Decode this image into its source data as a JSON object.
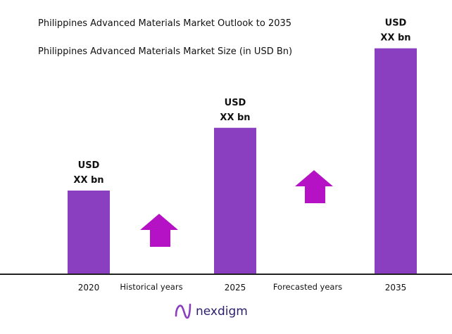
{
  "title": "Philippines Advanced Materials Market Outlook to 2035",
  "subtitle": "Philippines Advanced Materials Market Size (in USD Bn)",
  "brand": {
    "name": "nexdigm",
    "icon": "nexdigm-logo-icon",
    "color": "#2a1f6b"
  },
  "colors": {
    "bar": "#8a3fc0",
    "arrow": "#b412c4",
    "axis": "#222222"
  },
  "period_labels": [
    "Historical years",
    "Forecasted years"
  ],
  "chart_data": {
    "type": "bar",
    "title": "Philippines Advanced Materials Market Outlook to 2035",
    "subtitle": "Philippines Advanced Materials Market Size (in USD Bn)",
    "categories": [
      "2020",
      "2025",
      "2035"
    ],
    "values": [
      1,
      1.75,
      2.7
    ],
    "data_labels": [
      {
        "line1": "USD",
        "line2": "XX bn"
      },
      {
        "line1": "USD",
        "line2": "XX bn"
      },
      {
        "line1": "USD",
        "line2": "XX bn"
      }
    ],
    "ylim": [
      0,
      3
    ],
    "xlabel": "",
    "ylabel": "",
    "grid": false,
    "legend": "none",
    "annotations": [
      "Historical years",
      "Forecasted years"
    ]
  }
}
